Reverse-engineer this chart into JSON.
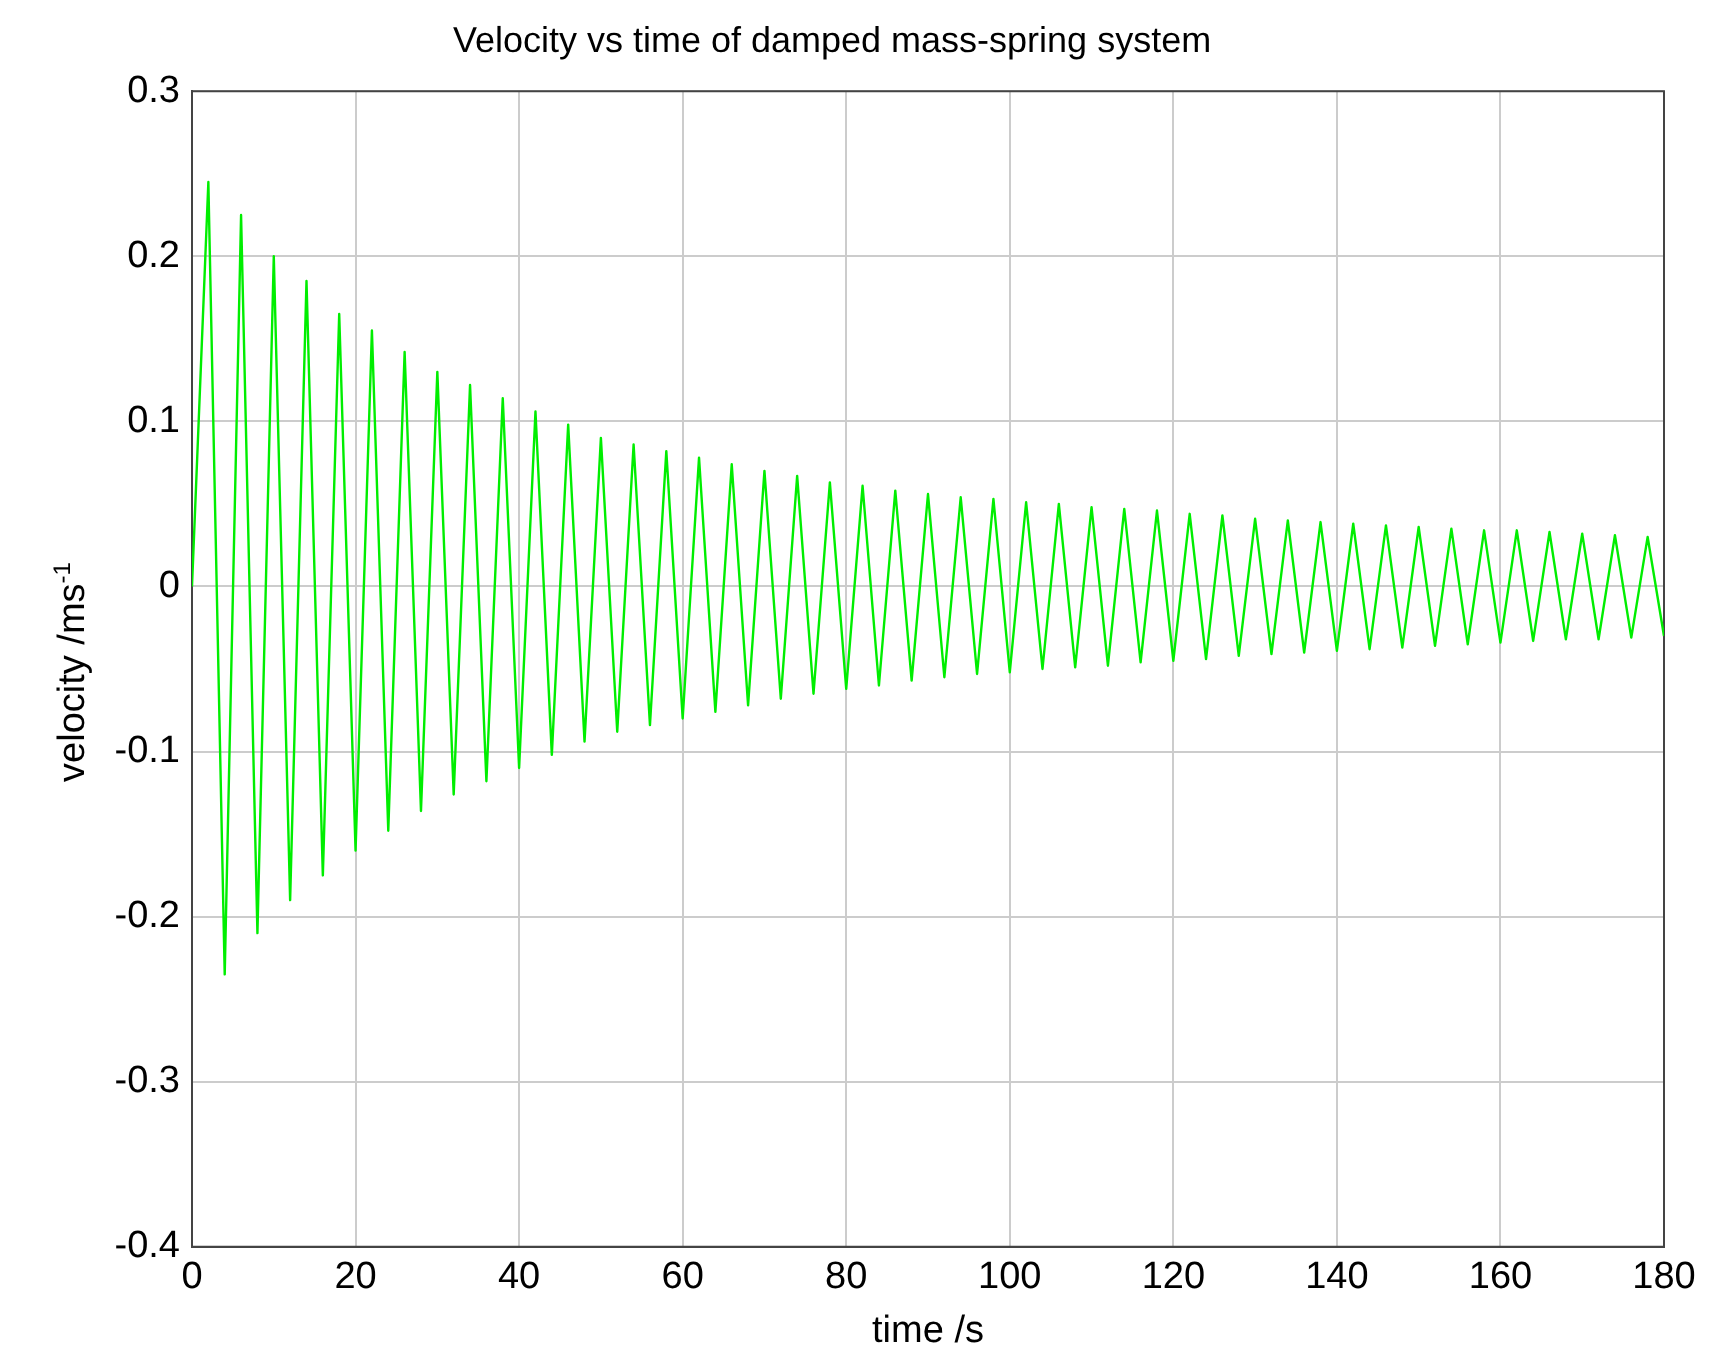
{
  "chart_data": {
    "type": "line",
    "title": "Velocity vs time of damped mass-spring system",
    "xlabel": "time /s",
    "ylabel": "velocity /ms$^{-1}$",
    "x": [
      0,
      2,
      4,
      6,
      8,
      10,
      12,
      14,
      16,
      18,
      20,
      22,
      24,
      26,
      28,
      30,
      32,
      34,
      36,
      38,
      40,
      42,
      44,
      46,
      48,
      50,
      52,
      54,
      56,
      58,
      60,
      62,
      64,
      66,
      68,
      70,
      72,
      74,
      76,
      78,
      80,
      82,
      84,
      86,
      88,
      90,
      92,
      94,
      96,
      98,
      100,
      102,
      104,
      106,
      108,
      110,
      112,
      114,
      116,
      118,
      120,
      122,
      124,
      126,
      128,
      130,
      132,
      134,
      136,
      138,
      140,
      142,
      144,
      146,
      148,
      150,
      152,
      154,
      156,
      158,
      160,
      162,
      164,
      166,
      168,
      170,
      172,
      174,
      176,
      178,
      180
    ],
    "series": [
      {
        "color": "#00ee00",
        "values": [
          0,
          0.245,
          -0.235,
          0.225,
          -0.21,
          0.2,
          -0.19,
          0.185,
          -0.175,
          0.165,
          -0.16,
          0.155,
          -0.148,
          0.142,
          -0.136,
          0.13,
          -0.126,
          0.122,
          -0.118,
          0.114,
          -0.11,
          0.106,
          -0.102,
          0.098,
          -0.094,
          0.09,
          -0.088,
          0.086,
          -0.084,
          0.082,
          -0.08,
          0.078,
          -0.076,
          0.074,
          -0.072,
          0.07,
          -0.068,
          0.067,
          -0.065,
          0.063,
          -0.062,
          0.061,
          -0.06,
          0.058,
          -0.057,
          0.056,
          -0.055,
          0.054,
          -0.053,
          0.053,
          -0.052,
          0.051,
          -0.05,
          0.05,
          -0.049,
          0.048,
          -0.048,
          0.047,
          -0.046,
          0.046,
          -0.045,
          0.044,
          -0.044,
          0.043,
          -0.042,
          0.041,
          -0.041,
          0.04,
          -0.04,
          0.039,
          -0.039,
          0.038,
          -0.038,
          0.037,
          -0.037,
          0.036,
          -0.036,
          0.035,
          -0.035,
          0.034,
          -0.034,
          0.034,
          -0.033,
          0.033,
          -0.032,
          0.032,
          -0.032,
          0.031,
          -0.031,
          0.03,
          -0.03
        ]
      }
    ],
    "xlim": [
      0,
      180
    ],
    "xticks": [
      0,
      20,
      40,
      60,
      80,
      100,
      120,
      140,
      160,
      180
    ],
    "ylim": [
      -0.4,
      0.3
    ],
    "yticks": [
      -0.4,
      -0.3,
      -0.2,
      -0.1,
      0,
      0.1,
      0.2,
      0.3
    ],
    "grid": true,
    "legend": false,
    "marker": "none",
    "line_style": "solid"
  }
}
